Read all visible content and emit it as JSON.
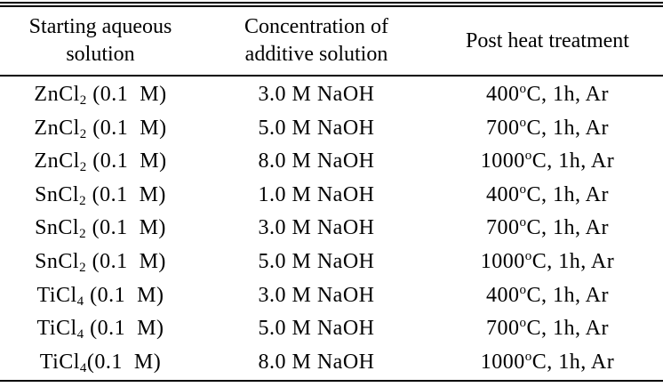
{
  "table": {
    "headers": [
      {
        "lines": [
          "Starting aqueous",
          "solution"
        ]
      },
      {
        "lines": [
          "Concentration of",
          "additive solution"
        ]
      },
      {
        "lines": [
          "Post heat treatment"
        ]
      }
    ],
    "rows": [
      {
        "solution": {
          "base": "ZnCl",
          "sub": "2",
          "rest": " (0.1  M)"
        },
        "additive": "3.0 M NaOH",
        "heat": {
          "temp": "400",
          "sup": "o",
          "rest": "C, 1h, Ar"
        }
      },
      {
        "solution": {
          "base": "ZnCl",
          "sub": "2",
          "rest": " (0.1  M)"
        },
        "additive": "5.0 M NaOH",
        "heat": {
          "temp": "700",
          "sup": "o",
          "rest": "C, 1h, Ar"
        }
      },
      {
        "solution": {
          "base": "ZnCl",
          "sub": "2",
          "rest": " (0.1  M)"
        },
        "additive": "8.0 M NaOH",
        "heat": {
          "temp": "1000",
          "sup": "o",
          "rest": "C, 1h, Ar"
        }
      },
      {
        "solution": {
          "base": "SnCl",
          "sub": "2",
          "rest": " (0.1  M)"
        },
        "additive": "1.0 M NaOH",
        "heat": {
          "temp": "400",
          "sup": "o",
          "rest": "C, 1h, Ar"
        }
      },
      {
        "solution": {
          "base": "SnCl",
          "sub": "2",
          "rest": " (0.1  M)"
        },
        "additive": "3.0 M NaOH",
        "heat": {
          "temp": "700",
          "sup": "o",
          "rest": "C, 1h, Ar"
        }
      },
      {
        "solution": {
          "base": "SnCl",
          "sub": "2",
          "rest": " (0.1  M)"
        },
        "additive": "5.0 M NaOH",
        "heat": {
          "temp": "1000",
          "sup": "o",
          "rest": "C, 1h, Ar"
        }
      },
      {
        "solution": {
          "base": "TiCl",
          "sub": "4",
          "rest": " (0.1  M)"
        },
        "additive": "3.0 M NaOH",
        "heat": {
          "temp": "400",
          "sup": "o",
          "rest": "C, 1h, Ar"
        }
      },
      {
        "solution": {
          "base": "TiCl",
          "sub": "4",
          "rest": " (0.1  M)"
        },
        "additive": "5.0 M NaOH",
        "heat": {
          "temp": "700",
          "sup": "o",
          "rest": "C, 1h, Ar"
        }
      },
      {
        "solution": {
          "base": "TiCl",
          "sub": "4",
          "rest": "(0.1  M)"
        },
        "additive": "8.0 M NaOH",
        "heat": {
          "temp": "1000",
          "sup": "o",
          "rest": "C, 1h, Ar"
        }
      }
    ]
  }
}
